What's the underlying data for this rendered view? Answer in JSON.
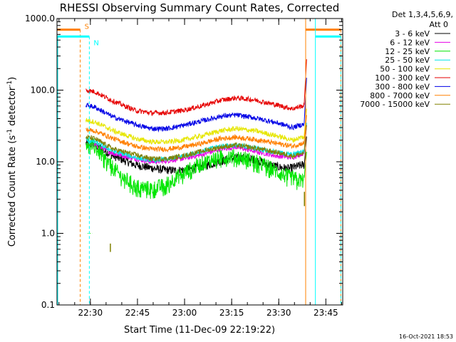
{
  "chart_data": {
    "type": "line",
    "title": "RHESSI Observing Summary Count Rates, Corrected",
    "xlabel": "Start Time (11-Dec-09 22:19:22)",
    "ylabel_main": "Corrected Count Rate (s",
    "ylabel_sup1": "-1",
    "ylabel_mid": " detector",
    "ylabel_sup2": "-1",
    "ylabel_end": ")",
    "yscale": "log",
    "ylim": [
      0.1,
      1000
    ],
    "xlim_minutes_from_start": [
      0,
      91
    ],
    "x_ticks": [
      {
        "t": 10.63,
        "label": "22:30"
      },
      {
        "t": 25.63,
        "label": "22:45"
      },
      {
        "t": 40.63,
        "label": "23:00"
      },
      {
        "t": 55.63,
        "label": "23:15"
      },
      {
        "t": 70.63,
        "label": "23:30"
      },
      {
        "t": 85.63,
        "label": "23:45"
      }
    ],
    "y_ticks": [
      {
        "v": 0.1,
        "label": "0.1"
      },
      {
        "v": 1,
        "label": "1.0"
      },
      {
        "v": 10,
        "label": "10.0"
      },
      {
        "v": 100,
        "label": "100.0"
      },
      {
        "v": 1000,
        "label": "1000.0"
      }
    ],
    "legend_header": [
      "Det 1,3,4,5,6,9,",
      "Att 0"
    ],
    "legend_placement": "top-right outside",
    "t_data_start": 9.2,
    "t_data_end": 78.8,
    "t_peak": 79.5,
    "series": [
      {
        "name": "3 - 6 keV",
        "color": "#000000",
        "knots": [
          [
            9.2,
            18
          ],
          [
            12,
            17
          ],
          [
            18,
            12
          ],
          [
            25,
            9
          ],
          [
            30,
            8.2
          ],
          [
            33,
            7.8
          ],
          [
            38,
            7.5
          ],
          [
            43,
            8
          ],
          [
            48,
            9
          ],
          [
            55,
            11
          ],
          [
            60,
            11.5
          ],
          [
            65,
            10
          ],
          [
            70,
            8.5
          ],
          [
            74,
            8
          ],
          [
            78,
            9
          ]
        ]
      },
      {
        "name": "6 - 12 keV",
        "color": "#e600e6",
        "knots": [
          [
            9.2,
            18
          ],
          [
            12,
            17
          ],
          [
            18,
            13
          ],
          [
            25,
            11
          ],
          [
            30,
            10
          ],
          [
            34,
            10.2
          ],
          [
            40,
            11
          ],
          [
            46,
            12.5
          ],
          [
            52,
            15
          ],
          [
            57,
            16
          ],
          [
            63,
            14
          ],
          [
            70,
            12
          ],
          [
            75,
            11.5
          ],
          [
            78,
            13
          ]
        ]
      },
      {
        "name": "12 - 25 keV",
        "color": "#00e600",
        "knots": [
          [
            9.2,
            19
          ],
          [
            12,
            16
          ],
          [
            16,
            10
          ],
          [
            20,
            6.5
          ],
          [
            25,
            4.5
          ],
          [
            30,
            4.2
          ],
          [
            34,
            4.6
          ],
          [
            38,
            6
          ],
          [
            44,
            8.5
          ],
          [
            50,
            11
          ],
          [
            55,
            12
          ],
          [
            60,
            11
          ],
          [
            66,
            9
          ],
          [
            72,
            6.5
          ],
          [
            77,
            5.5
          ]
        ]
      },
      {
        "name": "25 - 50 keV",
        "color": "#00e6e6",
        "knots": [
          [
            9.2,
            20
          ],
          [
            12,
            19
          ],
          [
            18,
            14
          ],
          [
            25,
            11.5
          ],
          [
            30,
            10.5
          ],
          [
            35,
            10.8
          ],
          [
            40,
            12
          ],
          [
            46,
            14
          ],
          [
            52,
            16.5
          ],
          [
            57,
            17
          ],
          [
            63,
            15.5
          ],
          [
            70,
            13.5
          ],
          [
            75,
            12.5
          ],
          [
            78,
            14
          ]
        ]
      },
      {
        "name": "50 - 100 keV",
        "color": "#e6e600",
        "knots": [
          [
            9.2,
            38
          ],
          [
            12,
            36
          ],
          [
            18,
            27
          ],
          [
            25,
            21
          ],
          [
            30,
            19
          ],
          [
            35,
            18.8
          ],
          [
            40,
            20
          ],
          [
            46,
            23
          ],
          [
            52,
            27
          ],
          [
            57,
            29
          ],
          [
            63,
            27
          ],
          [
            70,
            23
          ],
          [
            75,
            20
          ],
          [
            78,
            22
          ]
        ]
      },
      {
        "name": "100 - 300 keV",
        "color": "#e60000",
        "knots": [
          [
            9.2,
            100
          ],
          [
            12,
            95
          ],
          [
            18,
            70
          ],
          [
            25,
            52
          ],
          [
            30,
            48
          ],
          [
            35,
            48.5
          ],
          [
            40,
            52
          ],
          [
            46,
            60
          ],
          [
            52,
            72
          ],
          [
            57,
            78
          ],
          [
            63,
            73
          ],
          [
            70,
            62
          ],
          [
            75,
            55
          ],
          [
            78,
            60
          ]
        ]
      },
      {
        "name": "300 - 800 keV",
        "color": "#0000e6",
        "knots": [
          [
            9.2,
            62
          ],
          [
            12,
            58
          ],
          [
            18,
            42
          ],
          [
            25,
            33
          ],
          [
            30,
            29
          ],
          [
            35,
            29
          ],
          [
            40,
            32
          ],
          [
            46,
            37
          ],
          [
            52,
            43
          ],
          [
            57,
            45
          ],
          [
            63,
            41
          ],
          [
            70,
            35
          ],
          [
            75,
            30
          ],
          [
            78,
            33
          ]
        ]
      },
      {
        "name": "800 - 7000 keV",
        "color": "#ff8000",
        "knots": [
          [
            9.2,
            28
          ],
          [
            12,
            27
          ],
          [
            18,
            21
          ],
          [
            25,
            16.5
          ],
          [
            30,
            15
          ],
          [
            35,
            15
          ],
          [
            40,
            16
          ],
          [
            46,
            18
          ],
          [
            52,
            21
          ],
          [
            57,
            22
          ],
          [
            63,
            20.5
          ],
          [
            70,
            18
          ],
          [
            75,
            16.5
          ],
          [
            78,
            18
          ]
        ]
      },
      {
        "name": "7000 - 15000 keV",
        "color": "#808000",
        "knots": [
          [
            9.2,
            22
          ],
          [
            12,
            21
          ],
          [
            18,
            15
          ],
          [
            25,
            12.5
          ],
          [
            30,
            11
          ],
          [
            35,
            11
          ],
          [
            40,
            12
          ],
          [
            46,
            14
          ],
          [
            52,
            16
          ],
          [
            57,
            17
          ],
          [
            63,
            15.5
          ],
          [
            70,
            13.5
          ],
          [
            75,
            12
          ],
          [
            78,
            13
          ]
        ]
      }
    ],
    "flags": [
      {
        "name": "S",
        "color": "#ff8000",
        "line": "dashed",
        "t_end": 7.4,
        "level": 700
      },
      {
        "name": "N",
        "color": "#00ffff",
        "line": "dashed",
        "t_end": 10.3,
        "level": 560
      }
    ],
    "flag_after": [
      {
        "color": "#ff8000",
        "t_solid": 79.2,
        "t_dash": 90.4,
        "level": 700
      },
      {
        "color": "#00ffff",
        "t_solid": 82.3,
        "t_dash": 90.4,
        "level": 560
      }
    ],
    "timestamp": "16-Oct-2021 18:53"
  }
}
